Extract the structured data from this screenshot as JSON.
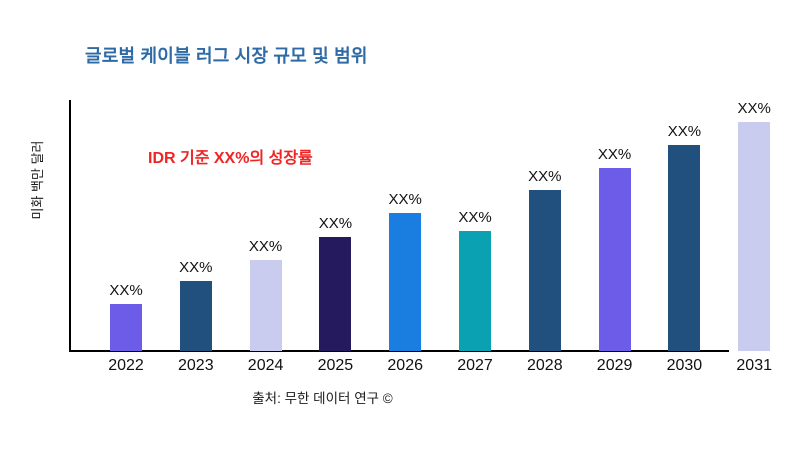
{
  "title": {
    "text": "글로벌 케이블 러그 시장 규모 및 범위",
    "color": "#2e6ba6"
  },
  "annotation": {
    "text": "IDR 기준 XX%의 성장률",
    "color": "#ef2525"
  },
  "source": "출처: 무한 데이터 연구 ©",
  "chart_data": {
    "type": "bar",
    "title": "글로벌 케이블 러그 시장 규모 및 범위",
    "ylabel": "미화 백만 달러",
    "xlabel": "",
    "categories": [
      "2022",
      "2023",
      "2024",
      "2025",
      "2026",
      "2027",
      "2028",
      "2029",
      "2030",
      "2031"
    ],
    "values_relative_pct_of_max": [
      20.5,
      30.6,
      39.7,
      49.8,
      60.3,
      52.4,
      70.3,
      79.9,
      90.0,
      100.0
    ],
    "bar_value_label": "XX%",
    "bar_colors": [
      "#6c5ce8",
      "#21507f",
      "#caccef",
      "#251a5e",
      "#1a7ee0",
      "#0aa2b2",
      "#21507f",
      "#6c5ce8",
      "#21507f",
      "#caccef"
    ],
    "annotation": "IDR 기준 XX%의 성장률",
    "grid": false,
    "legend": false,
    "axis_color": "#000000"
  }
}
